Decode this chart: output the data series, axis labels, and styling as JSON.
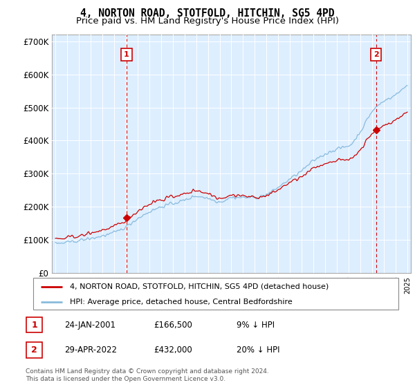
{
  "title": "4, NORTON ROAD, STOTFOLD, HITCHIN, SG5 4PD",
  "subtitle": "Price paid vs. HM Land Registry's House Price Index (HPI)",
  "title_fontsize": 10.5,
  "subtitle_fontsize": 9.5,
  "ylim": [
    0,
    720000
  ],
  "yticks": [
    0,
    100000,
    200000,
    300000,
    400000,
    500000,
    600000,
    700000
  ],
  "ytick_labels": [
    "£0",
    "£100K",
    "£200K",
    "£300K",
    "£400K",
    "£500K",
    "£600K",
    "£700K"
  ],
  "background_color": "#ffffff",
  "chart_bg_color": "#ddeeff",
  "grid_color": "#ffffff",
  "hpi_color": "#88bbdd",
  "price_color": "#cc0000",
  "legend_label_price": "4, NORTON ROAD, STOTFOLD, HITCHIN, SG5 4PD (detached house)",
  "legend_label_hpi": "HPI: Average price, detached house, Central Bedfordshire",
  "sale1_x": 2001.07,
  "sale1_value": 166500,
  "sale2_x": 2022.33,
  "sale2_value": 432000,
  "footer1": "Contains HM Land Registry data © Crown copyright and database right 2024.",
  "footer2": "This data is licensed under the Open Government Licence v3.0.",
  "table_row1": [
    "1",
    "24-JAN-2001",
    "£166,500",
    "9% ↓ HPI"
  ],
  "table_row2": [
    "2",
    "29-APR-2022",
    "£432,000",
    "20% ↓ HPI"
  ]
}
